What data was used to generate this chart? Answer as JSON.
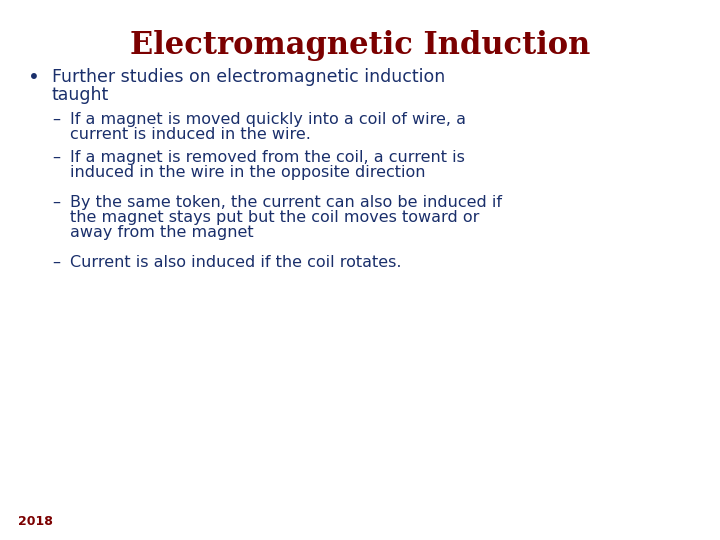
{
  "title": "Electromagnetic Induction",
  "title_color": "#7B0000",
  "title_fontsize": 22,
  "background_color": "#ffffff",
  "bullet_color": "#1a2f6b",
  "bullet_fontsize": 12.5,
  "sub_bullet_color": "#1a2f6b",
  "sub_bullet_fontsize": 11.5,
  "bullet_text_line1": "Further studies on electromagnetic induction",
  "bullet_text_line2": "taught",
  "sub_bullets": [
    "If a magnet is moved quickly into a coil of wire, a\ncurrent is induced in the wire.",
    "If a magnet is removed from the coil, a current is\ninduced in the wire in the opposite direction",
    "By the same token, the current can also be induced if\nthe magnet stays put but the coil moves toward or\naway from the magnet",
    "Current is also induced if the coil rotates."
  ],
  "year_text": "2018",
  "year_color": "#7B0000",
  "year_fontsize": 9
}
